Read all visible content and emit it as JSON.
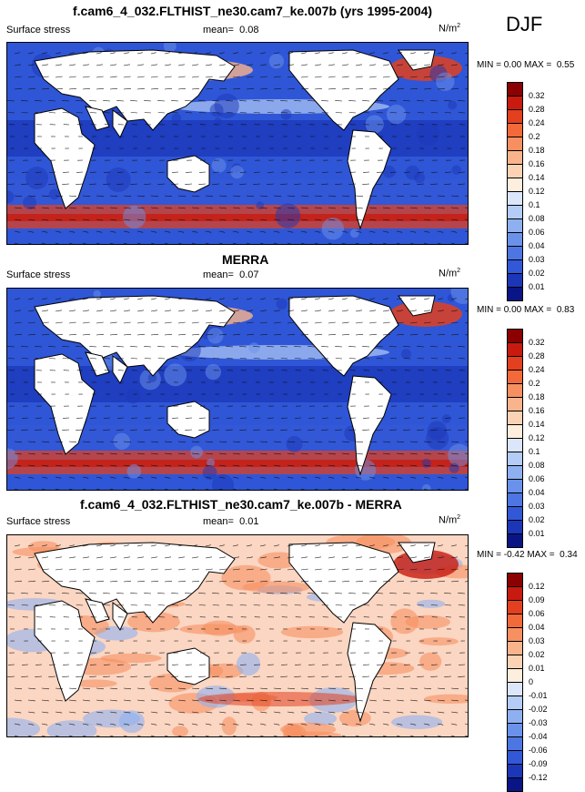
{
  "season": "DJF",
  "panels": [
    {
      "title": "f.cam6_4_032.FLTHIST_ne30.cam7_ke.007b (yrs 1995-2004)",
      "variable": "Surface stress",
      "mean_label": "mean=",
      "mean": "0.08",
      "unit": "N/m",
      "unit_sup": "2",
      "min_label": "MIN =",
      "min": "0.00",
      "max_label": "MAX =",
      "max": "0.55",
      "kind": "model",
      "colorbar": [
        "0.32",
        "0.28",
        "0.24",
        "0.2",
        "0.18",
        "0.16",
        "0.14",
        "0.12",
        "0.1",
        "0.08",
        "0.06",
        "0.04",
        "0.03",
        "0.02",
        "0.01"
      ],
      "colors": [
        "#8b0000",
        "#c81a0f",
        "#e2401f",
        "#f26a3a",
        "#f79060",
        "#fab48c",
        "#fcd2b4",
        "#fdeede",
        "#dbe6fb",
        "#b4ccf6",
        "#8fb0f0",
        "#6b92ea",
        "#4e76e3",
        "#3358d7",
        "#1b37b8",
        "#0a1585"
      ]
    },
    {
      "title": "MERRA",
      "variable": "Surface stress",
      "mean_label": "mean=",
      "mean": "0.07",
      "unit": "N/m",
      "unit_sup": "2",
      "min_label": "MIN =",
      "min": "0.00",
      "max_label": "MAX =",
      "max": "0.83",
      "kind": "obs",
      "colorbar": [
        "0.32",
        "0.28",
        "0.24",
        "0.2",
        "0.18",
        "0.16",
        "0.14",
        "0.12",
        "0.1",
        "0.08",
        "0.06",
        "0.04",
        "0.03",
        "0.02",
        "0.01"
      ],
      "colors": [
        "#8b0000",
        "#c81a0f",
        "#e2401f",
        "#f26a3a",
        "#f79060",
        "#fab48c",
        "#fcd2b4",
        "#fdeede",
        "#dbe6fb",
        "#b4ccf6",
        "#8fb0f0",
        "#6b92ea",
        "#4e76e3",
        "#3358d7",
        "#1b37b8",
        "#0a1585"
      ]
    },
    {
      "title": "f.cam6_4_032.FLTHIST_ne30.cam7_ke.007b - MERRA",
      "variable": "Surface stress",
      "mean_label": "mean=",
      "mean": "0.01",
      "unit": "N/m",
      "unit_sup": "2",
      "min_label": "MIN =",
      "min": "-0.42",
      "max_label": "MAX =",
      "max": "0.34",
      "kind": "diff",
      "colorbar": [
        "0.12",
        "0.09",
        "0.06",
        "0.04",
        "0.03",
        "0.02",
        "0.01",
        "0",
        "-0.01",
        "-0.02",
        "-0.03",
        "-0.04",
        "-0.06",
        "-0.09",
        "-0.12"
      ],
      "colors": [
        "#8b0000",
        "#c81a0f",
        "#e2401f",
        "#f26a3a",
        "#f79060",
        "#fab48c",
        "#fcd2b4",
        "#fdeede",
        "#dbe6fb",
        "#b4ccf6",
        "#8fb0f0",
        "#6b92ea",
        "#4e76e3",
        "#3358d7",
        "#1b37b8",
        "#0a1585"
      ]
    }
  ],
  "chart_data": [
    {
      "type": "heatmap",
      "title": "f.cam6_4_032.FLTHIST_ne30.cam7_ke.007b (yrs 1995-2004)",
      "subtitle": "DJF",
      "variable": "Surface stress",
      "units": "N/m2",
      "mean": 0.08,
      "min": 0.0,
      "max": 0.55,
      "levels": [
        0.01,
        0.02,
        0.03,
        0.04,
        0.06,
        0.08,
        0.1,
        0.12,
        0.14,
        0.16,
        0.18,
        0.2,
        0.24,
        0.28,
        0.32
      ]
    },
    {
      "type": "heatmap",
      "title": "MERRA",
      "subtitle": "DJF",
      "variable": "Surface stress",
      "units": "N/m2",
      "mean": 0.07,
      "min": 0.0,
      "max": 0.83,
      "levels": [
        0.01,
        0.02,
        0.03,
        0.04,
        0.06,
        0.08,
        0.1,
        0.12,
        0.14,
        0.16,
        0.18,
        0.2,
        0.24,
        0.28,
        0.32
      ]
    },
    {
      "type": "heatmap",
      "title": "f.cam6_4_032.FLTHIST_ne30.cam7_ke.007b - MERRA",
      "subtitle": "DJF",
      "variable": "Surface stress",
      "units": "N/m2",
      "mean": 0.01,
      "min": -0.42,
      "max": 0.34,
      "levels": [
        -0.12,
        -0.09,
        -0.06,
        -0.04,
        -0.03,
        -0.02,
        -0.01,
        0,
        0.01,
        0.02,
        0.03,
        0.04,
        0.06,
        0.09,
        0.12
      ]
    }
  ]
}
